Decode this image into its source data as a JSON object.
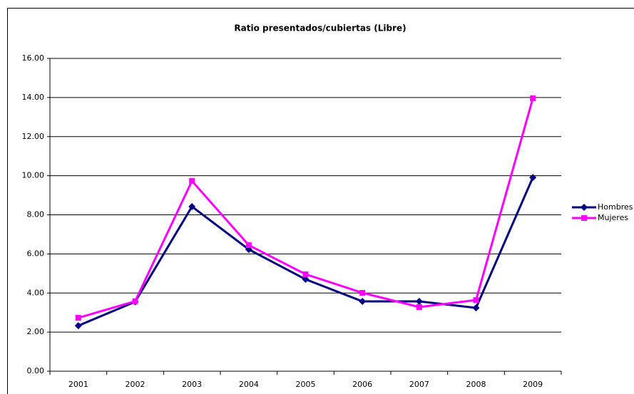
{
  "chart_data": {
    "type": "line",
    "title": "Ratio presentados/cubiertas (Libre)",
    "categories": [
      "2001",
      "2002",
      "2003",
      "2004",
      "2005",
      "2006",
      "2007",
      "2008",
      "2009"
    ],
    "series": [
      {
        "name": "Hombres",
        "color": "#000080",
        "marker": "diamond",
        "values": [
          2.33,
          3.55,
          8.42,
          6.23,
          4.7,
          3.57,
          3.57,
          3.24,
          9.91
        ]
      },
      {
        "name": "Mujeres",
        "color": "#ff00ff",
        "marker": "square",
        "values": [
          2.73,
          3.58,
          9.73,
          6.45,
          4.96,
          4.01,
          3.28,
          3.64,
          13.96
        ]
      }
    ],
    "ylim": [
      0,
      16
    ],
    "yticks": [
      {
        "value": 0,
        "label": "0.00"
      },
      {
        "value": 2,
        "label": "2.00"
      },
      {
        "value": 4,
        "label": "4.00"
      },
      {
        "value": 6,
        "label": "6.00"
      },
      {
        "value": 8,
        "label": "8.00"
      },
      {
        "value": 10,
        "label": "10.00"
      },
      {
        "value": 12,
        "label": "12.00"
      },
      {
        "value": 14,
        "label": "14.00"
      },
      {
        "value": 16,
        "label": "16.00"
      }
    ],
    "grid": true,
    "legend": "right"
  }
}
